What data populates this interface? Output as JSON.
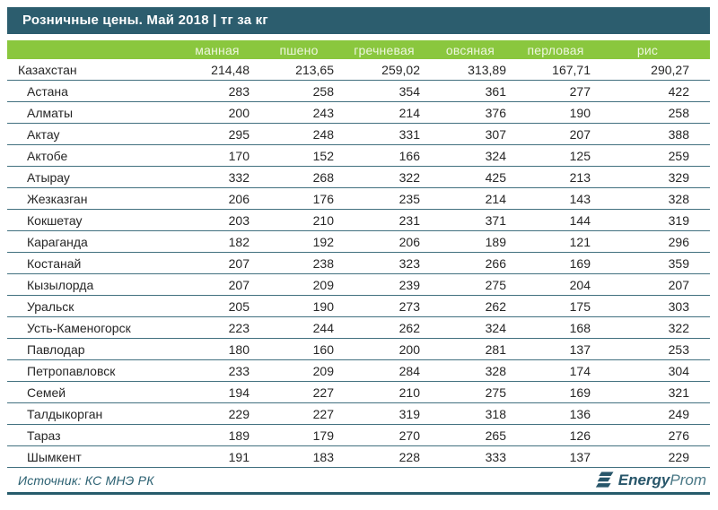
{
  "chart_data": {
    "type": "table",
    "title": "Розничные цены. Май 2018 | тг за кг",
    "columns": [
      "манная",
      "пшено",
      "гречневая",
      "овсяная",
      "перловая",
      "рис"
    ],
    "rows": [
      {
        "name": "Казахстан",
        "level": "country",
        "values": [
          214.48,
          213.65,
          259.02,
          313.89,
          167.71,
          290.27
        ],
        "display": [
          "214,48",
          "213,65",
          "259,02",
          "313,89",
          "167,71",
          "290,27"
        ]
      },
      {
        "name": "Астана",
        "level": "city",
        "values": [
          283,
          258,
          354,
          361,
          277,
          422
        ]
      },
      {
        "name": "Алматы",
        "level": "city",
        "values": [
          200,
          243,
          214,
          376,
          190,
          258
        ]
      },
      {
        "name": "Актау",
        "level": "city",
        "values": [
          295,
          248,
          331,
          307,
          207,
          388
        ]
      },
      {
        "name": "Актобе",
        "level": "city",
        "values": [
          170,
          152,
          166,
          324,
          125,
          259
        ]
      },
      {
        "name": "Атырау",
        "level": "city",
        "values": [
          332,
          268,
          322,
          425,
          213,
          329
        ]
      },
      {
        "name": "Жезказган",
        "level": "city",
        "values": [
          206,
          176,
          235,
          214,
          143,
          328
        ]
      },
      {
        "name": "Кокшетау",
        "level": "city",
        "values": [
          203,
          210,
          231,
          371,
          144,
          319
        ]
      },
      {
        "name": "Караганда",
        "level": "city",
        "values": [
          182,
          192,
          206,
          189,
          121,
          296
        ]
      },
      {
        "name": "Костанай",
        "level": "city",
        "values": [
          207,
          238,
          323,
          266,
          169,
          359
        ]
      },
      {
        "name": "Кызылорда",
        "level": "city",
        "values": [
          207,
          209,
          239,
          275,
          204,
          207
        ]
      },
      {
        "name": "Уральск",
        "level": "city",
        "values": [
          205,
          190,
          273,
          262,
          175,
          303
        ]
      },
      {
        "name": "Усть-Каменогорск",
        "level": "city",
        "values": [
          223,
          244,
          262,
          324,
          168,
          322
        ]
      },
      {
        "name": "Павлодар",
        "level": "city",
        "values": [
          180,
          160,
          200,
          281,
          137,
          253
        ]
      },
      {
        "name": "Петропавловск",
        "level": "city",
        "values": [
          233,
          209,
          284,
          328,
          174,
          304
        ]
      },
      {
        "name": "Семей",
        "level": "city",
        "values": [
          194,
          227,
          210,
          275,
          169,
          321
        ]
      },
      {
        "name": "Талдыкорган",
        "level": "city",
        "values": [
          229,
          227,
          319,
          318,
          136,
          249
        ]
      },
      {
        "name": "Тараз",
        "level": "city",
        "values": [
          189,
          179,
          270,
          265,
          126,
          276
        ]
      },
      {
        "name": "Шымкент",
        "level": "city",
        "values": [
          191,
          183,
          228,
          333,
          137,
          229
        ]
      }
    ],
    "layout": {
      "header_row": true,
      "grid": "horizontal-lines",
      "first_column_label": ""
    }
  },
  "footer": {
    "source": "Источник: КС МНЭ РК",
    "logo_bold": "Energy",
    "logo_light": "Prom"
  },
  "colors": {
    "title_bar_bg": "#2C5D6E",
    "header_band_bg": "#8AC73E",
    "header_text": "#EDF6DE",
    "row_line": "#41707F",
    "body_text": "#262626",
    "source_text": "#2C6172",
    "bottom_rule": "#275C6C"
  }
}
